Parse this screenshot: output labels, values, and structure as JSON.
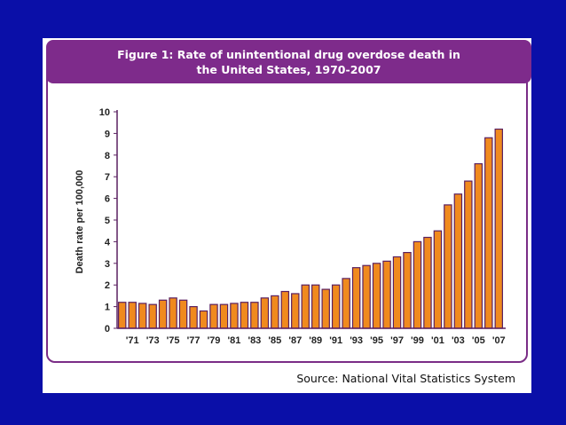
{
  "chart_data": {
    "type": "bar",
    "title_line1": "Figure 1: Rate of unintentional drug overdose death in",
    "title_line2": "the United States, 1970-2007",
    "ylabel": "Death rate per 100,000",
    "xlabel": "",
    "ylim": [
      0,
      10
    ],
    "yticks": [
      "0",
      "1",
      "2",
      "3",
      "4",
      "5",
      "6",
      "7",
      "8",
      "9",
      "10"
    ],
    "xtick_labels": [
      "'71",
      "'73",
      "'75",
      "'77",
      "'79",
      "'81",
      "'83",
      "'85",
      "'87",
      "'89",
      "'91",
      "'93",
      "'95",
      "'97",
      "'99",
      "'01",
      "'03",
      "'05",
      "'07"
    ],
    "categories": [
      "1970",
      "1971",
      "1972",
      "1973",
      "1974",
      "1975",
      "1976",
      "1977",
      "1978",
      "1979",
      "1980",
      "1981",
      "1982",
      "1983",
      "1984",
      "1985",
      "1986",
      "1987",
      "1988",
      "1989",
      "1990",
      "1991",
      "1992",
      "1993",
      "1994",
      "1995",
      "1996",
      "1997",
      "1998",
      "1999",
      "2000",
      "2001",
      "2002",
      "2003",
      "2004",
      "2005",
      "2006",
      "2007"
    ],
    "values": [
      1.2,
      1.2,
      1.15,
      1.1,
      1.3,
      1.4,
      1.3,
      1.0,
      0.8,
      1.1,
      1.1,
      1.15,
      1.2,
      1.2,
      1.4,
      1.5,
      1.7,
      1.6,
      2.0,
      2.0,
      1.8,
      2.0,
      2.3,
      2.8,
      2.9,
      3.0,
      3.1,
      3.3,
      3.5,
      4.0,
      4.2,
      4.5,
      5.7,
      6.2,
      6.8,
      7.6,
      8.8,
      9.2
    ],
    "colors": {
      "bar_fill": "#f08a1e",
      "bar_stroke": "#5a2060",
      "axis": "#5a2060"
    }
  },
  "footer": {
    "source": "Source: National Vital Statistics System"
  }
}
